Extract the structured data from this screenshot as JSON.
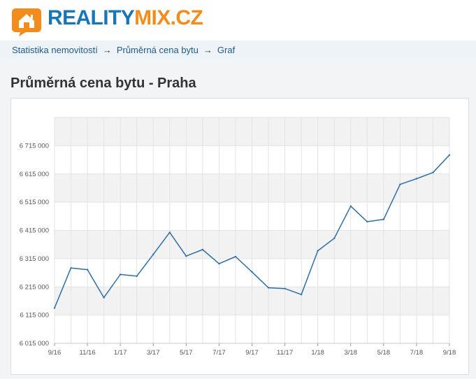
{
  "header": {
    "logo_part1": "REALITY",
    "logo_part2": "MIX.CZ",
    "brand_blue": "#1776b6",
    "brand_orange": "#f28c1d"
  },
  "breadcrumb": {
    "items": [
      "Statistika nemovitostí",
      "Průměrná cena bytu",
      "Graf"
    ],
    "separator": "→"
  },
  "page": {
    "title": "Průměrná cena bytu - Praha"
  },
  "chart_data": {
    "type": "line",
    "title": "",
    "xlabel": "",
    "ylabel": "",
    "x": [
      "9/16",
      "10/16",
      "11/16",
      "12/16",
      "1/17",
      "2/17",
      "3/17",
      "4/17",
      "5/17",
      "6/17",
      "7/17",
      "8/17",
      "9/17",
      "10/17",
      "11/17",
      "12/17",
      "1/18",
      "2/18",
      "3/18",
      "4/18",
      "5/18",
      "6/18",
      "7/18",
      "8/18",
      "9/18"
    ],
    "x_tick_labels": [
      "9/16",
      "11/16",
      "1/17",
      "3/17",
      "5/17",
      "7/17",
      "9/17",
      "11/17",
      "1/18",
      "3/18",
      "5/18",
      "7/18",
      "9/18"
    ],
    "series": [
      {
        "values": [
          6140000,
          6282000,
          6276000,
          6177000,
          6259000,
          6253000,
          6330000,
          6408000,
          6324000,
          6347000,
          6297000,
          6322000,
          6268000,
          6212000,
          6209000,
          6188000,
          6343000,
          6387000,
          6501000,
          6446000,
          6454000,
          6578000,
          6598000,
          6620000,
          6682000
        ],
        "color": "#2f6ea4"
      }
    ],
    "y_ticks": [
      "6 015 000",
      "6 115 000",
      "6 215 000",
      "6 315 000",
      "6 415 000",
      "6 515 000",
      "6 615 000",
      "6 715 000"
    ],
    "y_tick_values": [
      6015000,
      6115000,
      6215000,
      6315000,
      6415000,
      6515000,
      6615000,
      6715000
    ],
    "ylim": [
      6015000,
      6815000
    ],
    "grid": true,
    "band_color": "#f2f2f2"
  }
}
